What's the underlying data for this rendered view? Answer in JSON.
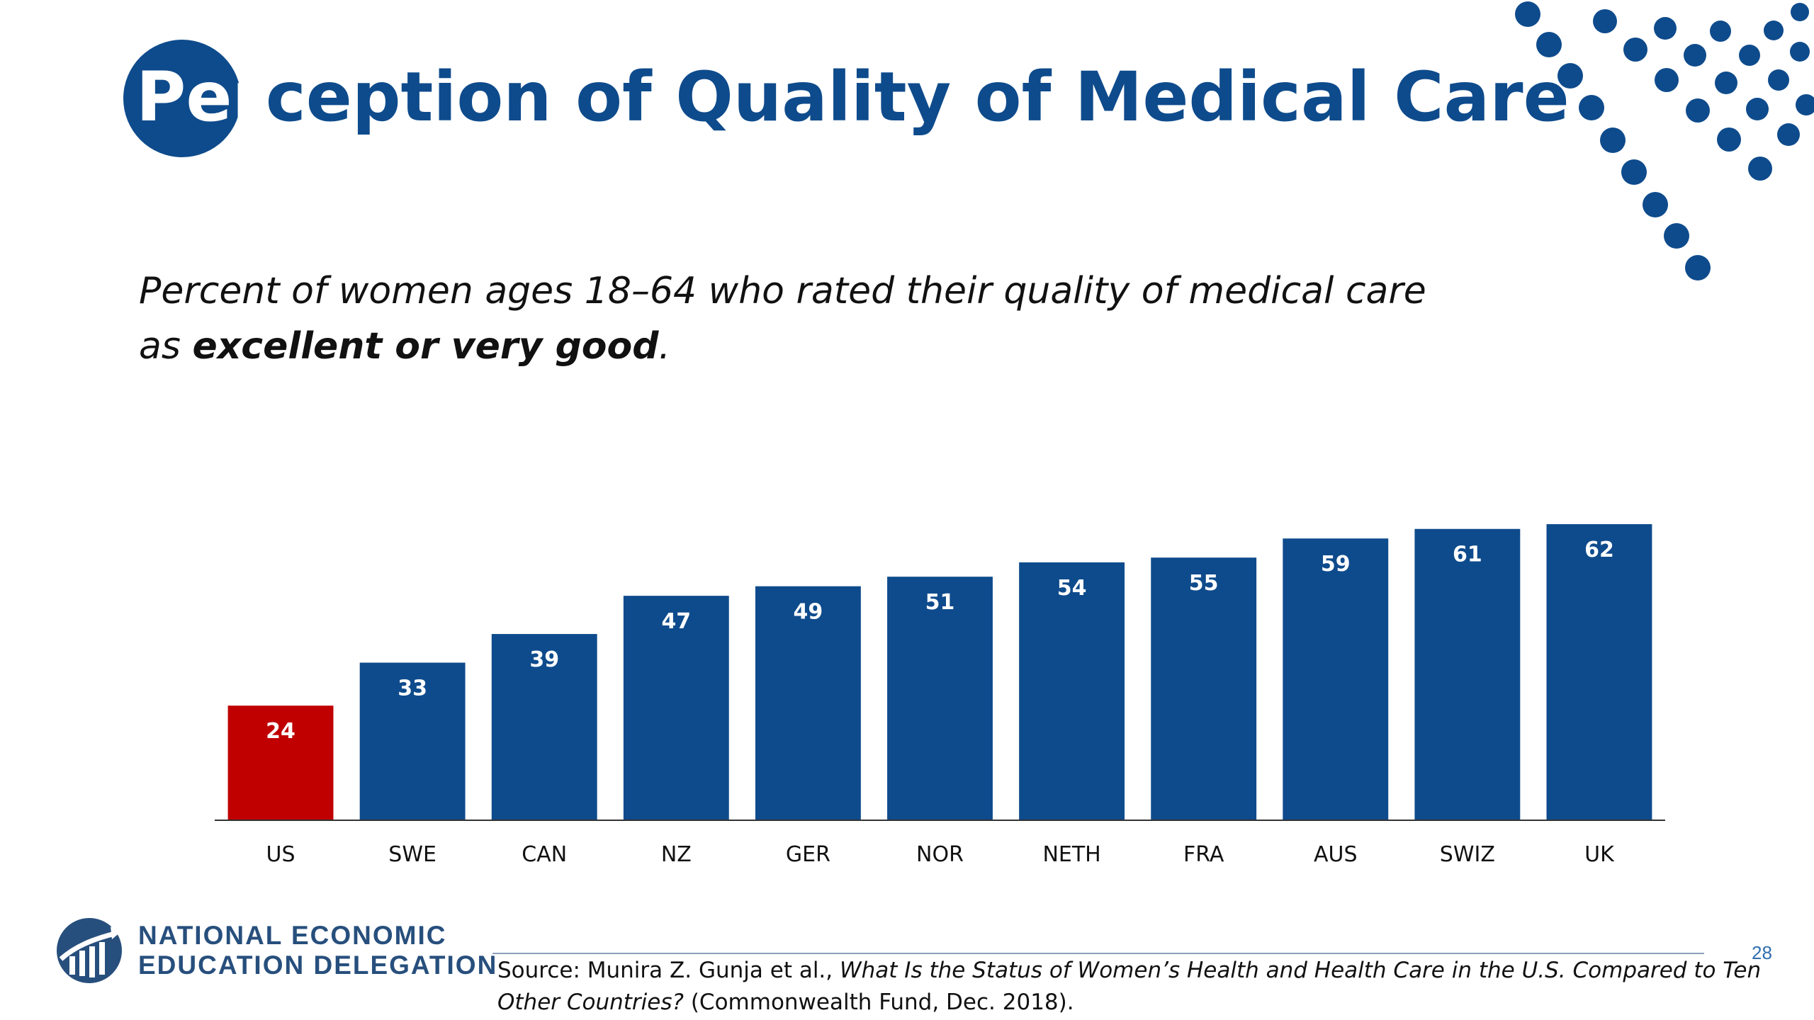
{
  "slide": {
    "title_part1": "Per",
    "title_part2": "ception of Quality of Medical Care",
    "subtitle_line1": "Percent of women ages 18–64 who rated their quality of medical care",
    "subtitle_line2_prefix": "as ",
    "subtitle_line2_bold": "excellent or very good",
    "subtitle_line2_suffix": ".",
    "source_prefix": "Source: Munira Z. Gunja et al., ",
    "source_title": "What Is the Status of Women’s Health and Health Care in the U.S. Compared to Ten Other Countries?",
    "source_suffix": " (Commonwealth Fund, Dec. 2018).",
    "page_number": "28",
    "logo_line1": "NATIONAL ECONOMIC",
    "logo_line2": "EDUCATION DELEGATION"
  },
  "colors": {
    "brand_blue": "#0e4b8c",
    "us_red": "#c00000",
    "axis": "#333333",
    "logo_text": "#274f7d"
  },
  "chart_data": {
    "type": "bar",
    "title": "",
    "xlabel": "",
    "ylabel": "",
    "categories": [
      "US",
      "SWE",
      "CAN",
      "NZ",
      "GER",
      "NOR",
      "NETH",
      "FRA",
      "AUS",
      "SWIZ",
      "UK"
    ],
    "values": [
      24,
      33,
      39,
      47,
      49,
      51,
      54,
      55,
      59,
      61,
      62
    ],
    "highlight_category": "US",
    "data_labels": true,
    "ylim": [
      0,
      62
    ],
    "grid": false,
    "legend": "none"
  }
}
